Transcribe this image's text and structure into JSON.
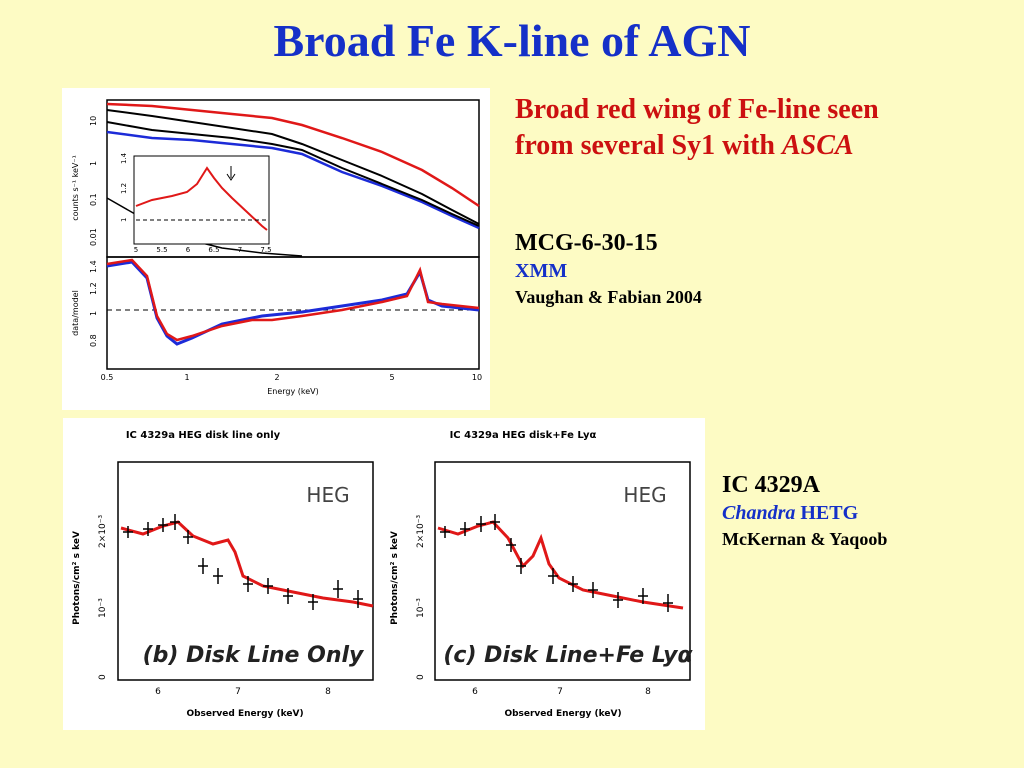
{
  "title": "Broad Fe K-line of AGN",
  "headline": {
    "line1": "Broad red wing of Fe-line seen",
    "line2_prefix": "from several Sy1 with ",
    "line2_italic": "ASCA"
  },
  "mcg": {
    "name": "MCG-6-30-15",
    "instrument": "XMM",
    "reference": "Vaughan & Fabian 2004"
  },
  "ic": {
    "name": "IC 4329A",
    "instrument_italic": "Chandra",
    "instrument_rest": " HETG",
    "reference": "McKernan & Yaqoob"
  },
  "figure_top": {
    "ylabel_top": "counts s⁻¹ keV⁻¹",
    "ylabel_bottom": "data/model",
    "xlabel": "Energy (keV)",
    "yticks_top": [
      "10",
      "1",
      "0.1",
      "0.01"
    ],
    "yticks_bottom": [
      "1.4",
      "1.2",
      "1",
      "0.8"
    ],
    "xticks": [
      "0.5",
      "1",
      "2",
      "5",
      "10"
    ],
    "inset_xticks": [
      "5",
      "5.5",
      "6",
      "6.5",
      "7",
      "7.5"
    ],
    "inset_yticks": [
      "1.4",
      "1.2",
      "1"
    ]
  },
  "figure_bottom": {
    "left_title": "IC 4329a HEG disk line only",
    "right_title": "IC 4329a HEG disk+Fe Lyα",
    "heg_label": "HEG",
    "left_caption": "(b)  Disk Line Only",
    "right_caption": "(c) Disk Line+Fe Lyα",
    "ylabel": "Photons/cm² s keV",
    "xlabel": "Observed Energy (keV)",
    "xticks": [
      "6",
      "7",
      "8"
    ],
    "yticks": [
      "2×10⁻³",
      "10⁻³",
      "0"
    ]
  },
  "colors": {
    "title": "#1530c8",
    "headline": "#cc1010",
    "background": "#fdfbc4",
    "red_series": "#e01818",
    "blue_series": "#1c2bd8"
  }
}
